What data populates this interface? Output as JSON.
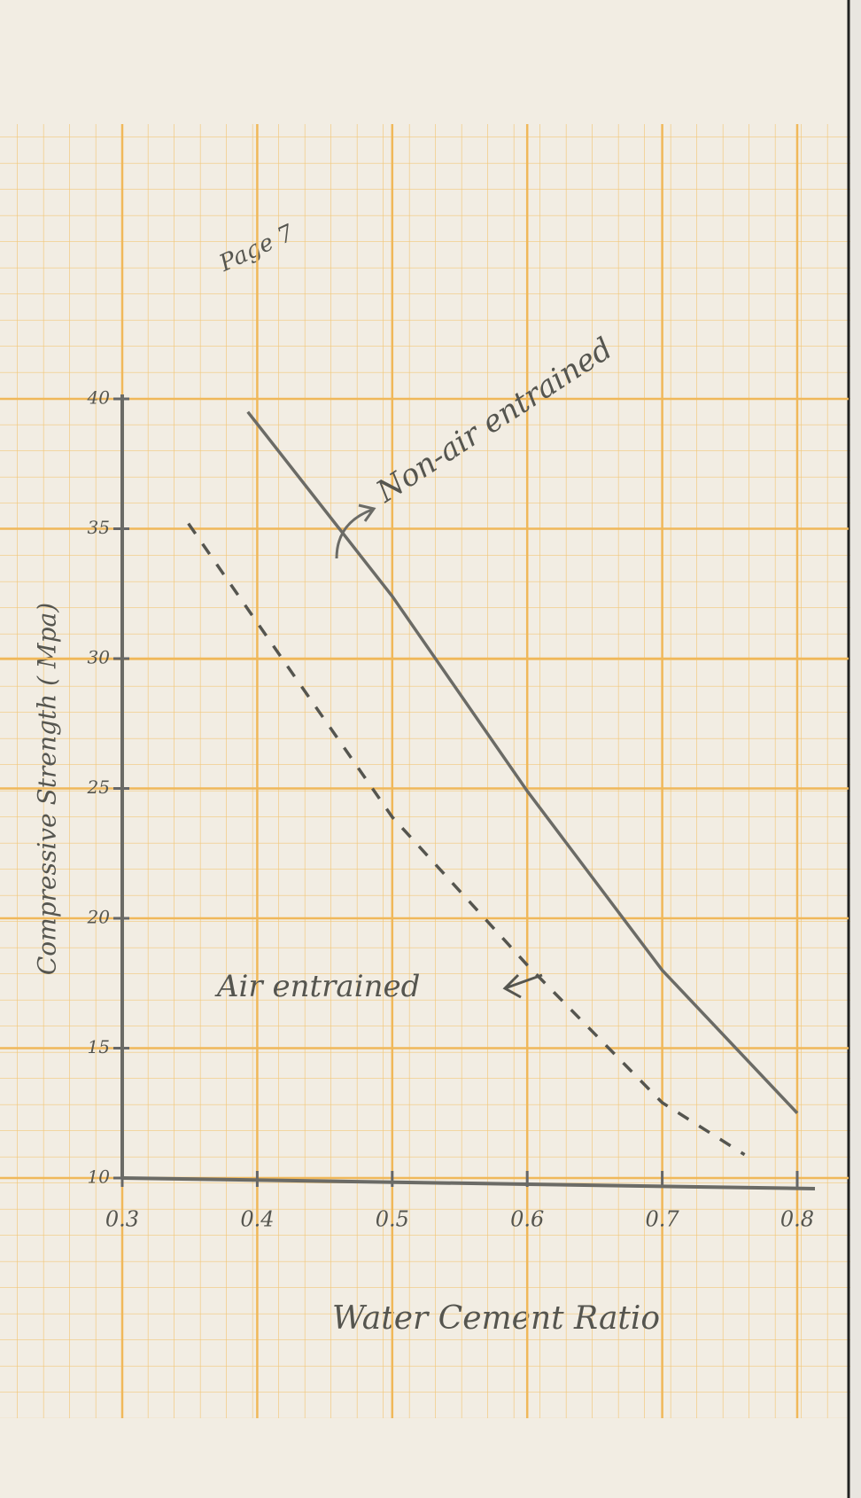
{
  "chart_data": {
    "type": "line",
    "annotations": [
      "Page 7"
    ],
    "x_label": "Water Cement Ratio",
    "y_label": "Compressive Strength ( Mpa)",
    "xlim": [
      0.3,
      0.8
    ],
    "xticks": [
      0.3,
      0.4,
      0.5,
      0.6,
      0.7,
      0.8
    ],
    "ylim": [
      10,
      40
    ],
    "yticks": [
      10,
      15,
      20,
      25,
      30,
      35,
      40
    ],
    "grid": true,
    "series": [
      {
        "name": "Non-air entrained",
        "color": "#6b6b66",
        "dash": false,
        "x": [
          0.393,
          0.5,
          0.6,
          0.7,
          0.8
        ],
        "values": [
          39.5,
          32.4,
          24.9,
          18.0,
          12.5
        ]
      },
      {
        "name": "Air entrained",
        "color": "#55554f",
        "dash": true,
        "x": [
          0.349,
          0.5,
          0.6,
          0.7,
          0.761
        ],
        "values": [
          35.2,
          23.9,
          18.2,
          12.9,
          10.9
        ]
      }
    ]
  }
}
